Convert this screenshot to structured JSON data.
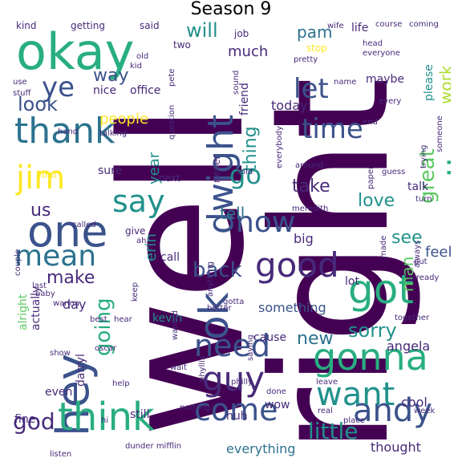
{
  "title": "Season 9",
  "colors": {
    "dark_purple": "#440154",
    "purple": "#472a7a",
    "indigo": "#3b528b",
    "blue": "#2c728e",
    "teal": "#21918c",
    "green_teal": "#28ae80",
    "green": "#5ec962",
    "lime": "#addc30",
    "yellow": "#fde725"
  },
  "words": [
    {
      "text": "well",
      "weight": 100,
      "color": "dark_purple",
      "orientation": "vertical"
    },
    {
      "text": "right",
      "weight": 98,
      "color": "dark_purple",
      "orientation": "vertical"
    },
    {
      "text": "okay",
      "weight": 55,
      "color": "green_teal",
      "orientation": "horizontal"
    },
    {
      "text": "thank",
      "weight": 40,
      "color": "blue",
      "orientation": "horizontal"
    },
    {
      "text": "really",
      "weight": 38,
      "color": "green_teal",
      "orientation": "vertical"
    },
    {
      "text": "hey",
      "weight": 38,
      "color": "indigo",
      "orientation": "vertical"
    },
    {
      "text": "think",
      "weight": 37,
      "color": "green_teal",
      "orientation": "horizontal"
    },
    {
      "text": "gonna",
      "weight": 35,
      "color": "green_teal",
      "orientation": "horizontal"
    },
    {
      "text": "dwight",
      "weight": 33,
      "color": "indigo",
      "orientation": "vertical"
    },
    {
      "text": "one",
      "weight": 33,
      "color": "indigo",
      "orientation": "horizontal"
    },
    {
      "text": "got",
      "weight": 32,
      "color": "green_teal",
      "orientation": "horizontal"
    },
    {
      "text": "ok",
      "weight": 30,
      "color": "indigo",
      "orientation": "vertical"
    },
    {
      "text": "good",
      "weight": 29,
      "color": "purple",
      "orientation": "horizontal"
    },
    {
      "text": "jim",
      "weight": 28,
      "color": "yellow",
      "orientation": "horizontal"
    },
    {
      "text": "andy",
      "weight": 28,
      "color": "indigo",
      "orientation": "horizontal"
    },
    {
      "text": "guy",
      "weight": 28,
      "color": "purple",
      "orientation": "horizontal"
    },
    {
      "text": "want",
      "weight": 27,
      "color": "teal",
      "orientation": "horizontal"
    },
    {
      "text": "need",
      "weight": 26,
      "color": "indigo",
      "orientation": "horizontal"
    },
    {
      "text": "come",
      "weight": 26,
      "color": "indigo",
      "orientation": "horizontal"
    },
    {
      "text": "mean",
      "weight": 26,
      "color": "blue",
      "orientation": "horizontal"
    },
    {
      "text": "ye",
      "weight": 25,
      "color": "indigo",
      "orientation": "horizontal"
    },
    {
      "text": "now",
      "weight": 25,
      "color": "indigo",
      "orientation": "horizontal"
    },
    {
      "text": "say",
      "weight": 25,
      "color": "teal",
      "orientation": "horizontal"
    },
    {
      "text": "time",
      "weight": 24,
      "color": "indigo",
      "orientation": "horizontal"
    },
    {
      "text": "let",
      "weight": 24,
      "color": "indigo",
      "orientation": "horizontal"
    },
    {
      "text": "go",
      "weight": 24,
      "color": "teal",
      "orientation": "horizontal"
    },
    {
      "text": "god",
      "weight": 20,
      "color": "purple",
      "orientation": "horizontal"
    },
    {
      "text": "little",
      "weight": 20,
      "color": "teal",
      "orientation": "horizontal"
    },
    {
      "text": "back",
      "weight": 19,
      "color": "indigo",
      "orientation": "horizontal"
    },
    {
      "text": "going",
      "weight": 18,
      "color": "green_teal",
      "orientation": "vertical"
    },
    {
      "text": "great",
      "weight": 18,
      "color": "green",
      "orientation": "vertical"
    },
    {
      "text": "thing",
      "weight": 17,
      "color": "teal",
      "orientation": "vertical"
    },
    {
      "text": "look",
      "weight": 17,
      "color": "indigo",
      "orientation": "horizontal"
    },
    {
      "text": "sorry",
      "weight": 17,
      "color": "teal",
      "orientation": "horizontal"
    },
    {
      "text": "make",
      "weight": 16,
      "color": "purple",
      "orientation": "horizontal"
    },
    {
      "text": "take",
      "weight": 16,
      "color": "purple",
      "orientation": "horizontal"
    },
    {
      "text": "love",
      "weight": 16,
      "color": "teal",
      "orientation": "horizontal"
    },
    {
      "text": "see",
      "weight": 16,
      "color": "teal",
      "orientation": "horizontal"
    },
    {
      "text": "way",
      "weight": 16,
      "color": "indigo",
      "orientation": "horizontal"
    },
    {
      "text": "will",
      "weight": 16,
      "color": "teal",
      "orientation": "horizontal"
    },
    {
      "text": "tell",
      "weight": 15,
      "color": "blue",
      "orientation": "horizontal"
    },
    {
      "text": "new",
      "weight": 15,
      "color": "blue",
      "orientation": "horizontal"
    },
    {
      "text": "work",
      "weight": 15,
      "color": "lime",
      "orientation": "vertical"
    },
    {
      "text": "man",
      "weight": 14,
      "color": "green",
      "orientation": "vertical"
    },
    {
      "text": "us",
      "weight": 14,
      "color": "purple",
      "orientation": "horizontal"
    },
    {
      "text": "pam",
      "weight": 14,
      "color": "blue",
      "orientation": "horizontal"
    },
    {
      "text": "much",
      "weight": 12,
      "color": "purple",
      "orientation": "horizontal"
    },
    {
      "text": "feel",
      "weight": 12,
      "color": "indigo",
      "orientation": "horizontal"
    },
    {
      "text": "erin",
      "weight": 12,
      "color": "teal",
      "orientation": "vertical"
    },
    {
      "text": "people",
      "weight": 11,
      "color": "yellow",
      "orientation": "horizontal"
    },
    {
      "text": "year",
      "weight": 11,
      "color": "teal",
      "orientation": "vertical"
    },
    {
      "text": "day",
      "weight": 11,
      "color": "purple",
      "orientation": "horizontal"
    },
    {
      "text": "something",
      "weight": 10,
      "color": "indigo",
      "orientation": "horizontal"
    },
    {
      "text": "everything",
      "weight": 10,
      "color": "blue",
      "orientation": "horizontal"
    },
    {
      "text": "thought",
      "weight": 10,
      "color": "purple",
      "orientation": "horizontal"
    },
    {
      "text": "talk",
      "weight": 10,
      "color": "purple",
      "orientation": "horizontal"
    },
    {
      "text": "call",
      "weight": 10,
      "color": "purple",
      "orientation": "horizontal"
    },
    {
      "text": "sure",
      "weight": 10,
      "color": "purple",
      "orientation": "horizontal"
    },
    {
      "text": "lot",
      "weight": 10,
      "color": "purple",
      "orientation": "horizontal"
    },
    {
      "text": "big",
      "weight": 10,
      "color": "purple",
      "orientation": "horizontal"
    },
    {
      "text": "kevin",
      "weight": 10,
      "color": "teal",
      "orientation": "horizontal"
    },
    {
      "text": "angela",
      "weight": 10,
      "color": "purple",
      "orientation": "horizontal"
    },
    {
      "text": "cool",
      "weight": 10,
      "color": "purple",
      "orientation": "horizontal"
    },
    {
      "text": "today",
      "weight": 10,
      "color": "purple",
      "orientation": "horizontal"
    },
    {
      "text": "maybe",
      "weight": 10,
      "color": "purple",
      "orientation": "horizontal"
    },
    {
      "text": "please",
      "weight": 10,
      "color": "teal",
      "orientation": "vertical"
    },
    {
      "text": "friend",
      "weight": 10,
      "color": "purple",
      "orientation": "vertical"
    },
    {
      "text": "never",
      "weight": 9,
      "color": "purple",
      "orientation": "vertical"
    },
    {
      "text": "alright",
      "weight": 9,
      "color": "green",
      "orientation": "vertical"
    },
    {
      "text": "actually",
      "weight": 9,
      "color": "purple",
      "orientation": "vertical"
    },
    {
      "text": "darryl",
      "weight": 9,
      "color": "purple",
      "orientation": "vertical"
    },
    {
      "text": "wow",
      "weight": 9,
      "color": "purple",
      "orientation": "horizontal"
    },
    {
      "text": "huh",
      "weight": 9,
      "color": "purple",
      "orientation": "horizontal"
    },
    {
      "text": "even",
      "weight": 9,
      "color": "purple",
      "orientation": "horizontal"
    },
    {
      "text": "fine",
      "weight": 9,
      "color": "purple",
      "orientation": "horizontal"
    },
    {
      "text": "still",
      "weight": 9,
      "color": "purple",
      "orientation": "horizontal"
    },
    {
      "text": "cause",
      "weight": 9,
      "color": "purple",
      "orientation": "horizontal"
    },
    {
      "text": "life",
      "weight": 9,
      "color": "purple",
      "orientation": "horizontal"
    },
    {
      "text": "office",
      "weight": 8,
      "color": "purple",
      "orientation": "horizontal"
    },
    {
      "text": "nice",
      "weight": 8,
      "color": "purple",
      "orientation": "horizontal"
    },
    {
      "text": "next",
      "weight": 8,
      "color": "purple",
      "orientation": "horizontal"
    },
    {
      "text": "first",
      "weight": 8,
      "color": "yellow",
      "orientation": "horizontal"
    },
    {
      "text": "getting",
      "weight": 8,
      "color": "purple",
      "orientation": "horizontal"
    },
    {
      "text": "kind",
      "weight": 8,
      "color": "purple",
      "orientation": "horizontal"
    },
    {
      "text": "said",
      "weight": 8,
      "color": "purple",
      "orientation": "horizontal"
    },
    {
      "text": "two",
      "weight": 8,
      "color": "purple",
      "orientation": "horizontal"
    },
    {
      "text": "job",
      "weight": 8,
      "color": "purple",
      "orientation": "horizontal"
    },
    {
      "text": "stop",
      "weight": 8,
      "color": "yellow",
      "orientation": "horizontal"
    },
    {
      "text": "name",
      "weight": 7,
      "color": "purple",
      "orientation": "horizontal"
    },
    {
      "text": "give",
      "weight": 7,
      "color": "purple",
      "orientation": "horizontal"
    },
    {
      "text": "leave",
      "weight": 7,
      "color": "purple",
      "orientation": "horizontal"
    },
    {
      "text": "real",
      "weight": 7,
      "color": "purple",
      "orientation": "horizontal"
    },
    {
      "text": "place",
      "weight": 7,
      "color": "purple",
      "orientation": "horizontal"
    },
    {
      "text": "gotta",
      "weight": 7,
      "color": "purple",
      "orientation": "horizontal"
    },
    {
      "text": "better",
      "weight": 7,
      "color": "purple",
      "orientation": "horizontal"
    },
    {
      "text": "nothing",
      "weight": 7,
      "color": "purple",
      "orientation": "horizontal"
    },
    {
      "text": "around",
      "weight": 7,
      "color": "purple",
      "orientation": "horizontal"
    },
    {
      "text": "paper",
      "weight": 7,
      "color": "purple",
      "orientation": "vertical"
    },
    {
      "text": "philly",
      "weight": 7,
      "color": "purple",
      "orientation": "horizontal"
    },
    {
      "text": "anything",
      "weight": 7,
      "color": "purple",
      "orientation": "vertical"
    },
    {
      "text": "phyllis",
      "weight": 7,
      "color": "purple",
      "orientation": "vertical"
    },
    {
      "text": "oscar",
      "weight": 7,
      "color": "purple",
      "orientation": "horizontal"
    },
    {
      "text": "best",
      "weight": 7,
      "color": "purple",
      "orientation": "horizontal"
    },
    {
      "text": "dunder mifflin",
      "weight": 7,
      "color": "purple",
      "orientation": "horizontal"
    },
    {
      "text": "made",
      "weight": 7,
      "color": "purple",
      "orientation": "vertical"
    },
    {
      "text": "always",
      "weight": 6,
      "color": "purple",
      "orientation": "vertical"
    },
    {
      "text": "already",
      "weight": 6,
      "color": "purple",
      "orientation": "horizontal"
    },
    {
      "text": "put",
      "weight": 6,
      "color": "purple",
      "orientation": "horizontal"
    },
    {
      "text": "done",
      "weight": 6,
      "color": "purple",
      "orientation": "horizontal"
    },
    {
      "text": "talking",
      "weight": 6,
      "color": "purple",
      "orientation": "horizontal"
    },
    {
      "text": "wife",
      "weight": 6,
      "color": "purple",
      "orientation": "horizontal"
    },
    {
      "text": "head",
      "weight": 6,
      "color": "purple",
      "orientation": "horizontal"
    },
    {
      "text": "everyone",
      "weight": 6,
      "color": "purple",
      "orientation": "horizontal"
    },
    {
      "text": "someone",
      "weight": 6,
      "color": "purple",
      "orientation": "vertical"
    },
    {
      "text": "trying",
      "weight": 6,
      "color": "purple",
      "orientation": "vertical"
    },
    {
      "text": "guess",
      "weight": 6,
      "color": "purple",
      "orientation": "horizontal"
    },
    {
      "text": "turn",
      "weight": 6,
      "color": "purple",
      "orientation": "horizontal"
    },
    {
      "text": "week",
      "weight": 6,
      "color": "purple",
      "orientation": "horizontal"
    },
    {
      "text": "together",
      "weight": 6,
      "color": "purple",
      "orientation": "horizontal"
    },
    {
      "text": "saying",
      "weight": 6,
      "color": "purple",
      "orientation": "vertical"
    },
    {
      "text": "wanted",
      "weight": 6,
      "color": "purple",
      "orientation": "vertical"
    },
    {
      "text": "keep",
      "weight": 6,
      "color": "purple",
      "orientation": "vertical"
    },
    {
      "text": "hear",
      "weight": 6,
      "color": "purple",
      "orientation": "horizontal"
    },
    {
      "text": "help",
      "weight": 6,
      "color": "purple",
      "orientation": "horizontal"
    },
    {
      "text": "hi",
      "weight": 6,
      "color": "purple",
      "orientation": "horizontal"
    },
    {
      "text": "show",
      "weight": 6,
      "color": "purple",
      "orientation": "horizontal"
    },
    {
      "text": "baby",
      "weight": 6,
      "color": "purple",
      "orientation": "horizontal"
    },
    {
      "text": "last",
      "weight": 6,
      "color": "purple",
      "orientation": "horizontal"
    },
    {
      "text": "wanna",
      "weight": 6,
      "color": "purple",
      "orientation": "horizontal"
    },
    {
      "text": "couple",
      "weight": 6,
      "color": "purple",
      "orientation": "vertical"
    },
    {
      "text": "called",
      "weight": 6,
      "color": "purple",
      "orientation": "horizontal"
    },
    {
      "text": "ah",
      "weight": 6,
      "color": "purple",
      "orientation": "horizontal"
    },
    {
      "text": "kid",
      "weight": 6,
      "color": "purple",
      "orientation": "horizontal"
    },
    {
      "text": "old",
      "weight": 6,
      "color": "purple",
      "orientation": "horizontal"
    },
    {
      "text": "pete",
      "weight": 6,
      "color": "purple",
      "orientation": "vertical"
    },
    {
      "text": "pretty",
      "weight": 6,
      "color": "purple",
      "orientation": "horizontal"
    },
    {
      "text": "course",
      "weight": 6,
      "color": "purple",
      "orientation": "horizontal"
    },
    {
      "text": "coming",
      "weight": 6,
      "color": "purple",
      "orientation": "horizontal"
    },
    {
      "text": "stuff",
      "weight": 6,
      "color": "purple",
      "orientation": "horizontal"
    },
    {
      "text": "use",
      "weight": 6,
      "color": "purple",
      "orientation": "horizontal"
    },
    {
      "text": "question",
      "weight": 6,
      "color": "purple",
      "orientation": "vertical"
    },
    {
      "text": "sound",
      "weight": 6,
      "color": "purple",
      "orientation": "vertical"
    },
    {
      "text": "hand",
      "weight": 6,
      "color": "purple",
      "orientation": "horizontal"
    },
    {
      "text": "end",
      "weight": 6,
      "color": "purple",
      "orientation": "horizontal"
    },
    {
      "text": "every",
      "weight": 6,
      "color": "purple",
      "orientation": "horizontal"
    },
    {
      "text": "told",
      "weight": 6,
      "color": "purple",
      "orientation": "horizontal"
    },
    {
      "text": "everybody",
      "weight": 5,
      "color": "purple",
      "orientation": "vertical"
    },
    {
      "text": "meredith",
      "weight": 5,
      "color": "purple",
      "orientation": "horizontal"
    },
    {
      "text": "wait",
      "weight": 5,
      "color": "purple",
      "orientation": "horizontal"
    },
    {
      "text": "listen",
      "weight": 5,
      "color": "purple",
      "orientation": "horizontal"
    }
  ]
}
